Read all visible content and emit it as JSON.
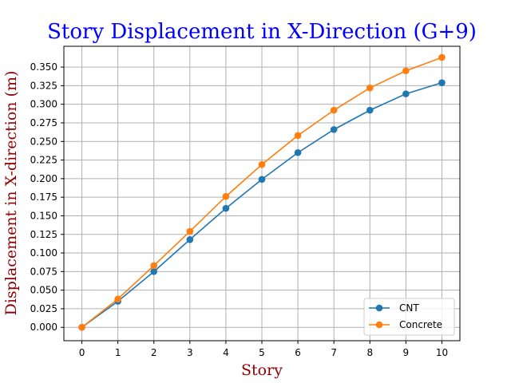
{
  "chart_data": {
    "type": "line",
    "title": "Story Displacement in X-Direction (G+9)",
    "xlabel": "Story",
    "ylabel": "Displacement in X-direction (m)",
    "x": [
      0,
      1,
      2,
      3,
      4,
      5,
      6,
      7,
      8,
      9,
      10
    ],
    "xlim": [
      -0.5,
      10.5
    ],
    "ylim": [
      -0.018,
      0.378
    ],
    "xticks": [
      "0",
      "1",
      "2",
      "3",
      "4",
      "5",
      "6",
      "7",
      "8",
      "9",
      "10"
    ],
    "yticks": [
      "0.000",
      "0.025",
      "0.050",
      "0.075",
      "0.100",
      "0.125",
      "0.150",
      "0.175",
      "0.200",
      "0.225",
      "0.250",
      "0.275",
      "0.300",
      "0.325",
      "0.350"
    ],
    "grid": true,
    "legend_position": "bottom-right",
    "series": [
      {
        "name": "CNT",
        "color": "#1f77b4",
        "values": [
          0.0,
          0.035,
          0.075,
          0.118,
          0.16,
          0.199,
          0.235,
          0.266,
          0.292,
          0.314,
          0.329
        ]
      },
      {
        "name": "Concrete",
        "color": "#ff7f0e",
        "values": [
          0.0,
          0.038,
          0.083,
          0.129,
          0.176,
          0.219,
          0.258,
          0.292,
          0.322,
          0.345,
          0.363
        ]
      }
    ],
    "colors": {
      "title": "#0000ff",
      "axis_labels": "#8b0000",
      "grid": "#b0b0b0"
    }
  }
}
